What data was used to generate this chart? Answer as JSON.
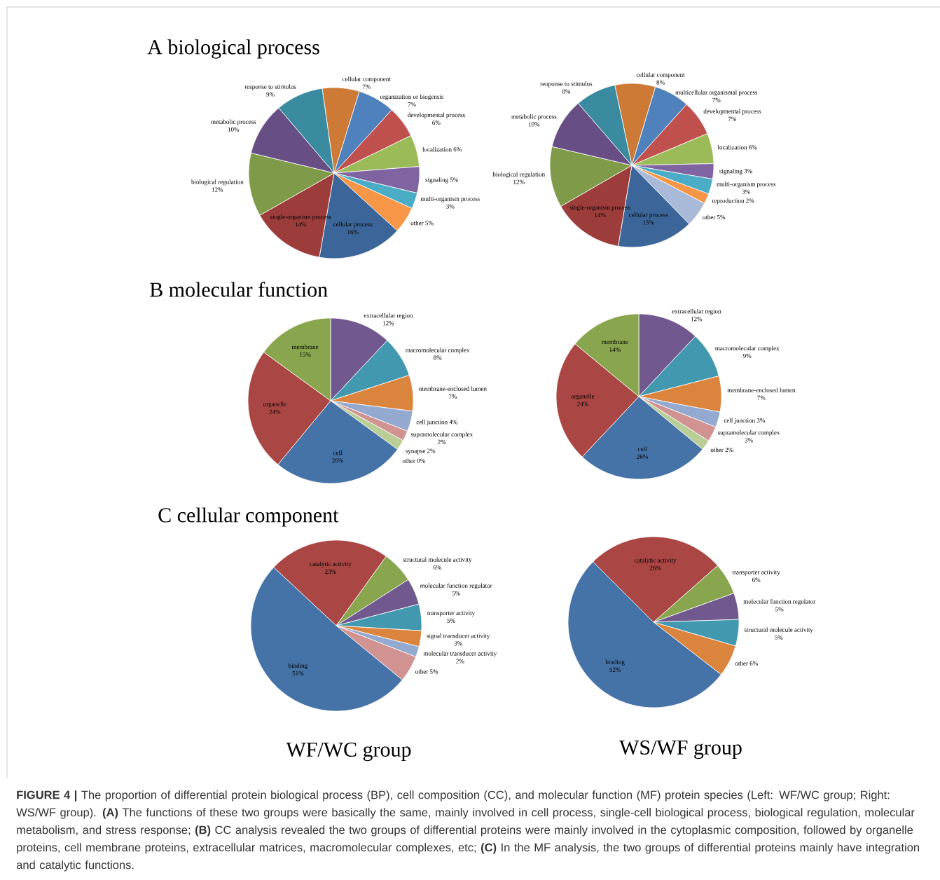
{
  "chart_data": [
    {
      "type": "pie",
      "title": "A   biological process",
      "categories": [
        "cellular component",
        "organization or biogensis",
        "developmental process",
        "localization",
        "signaling",
        "multi-organism process",
        "other",
        "cellular process",
        "single-organism process",
        "biological regulation",
        "metabolic process",
        "response to stimulus"
      ],
      "values": [
        7,
        7,
        6,
        6,
        5,
        3,
        5,
        16,
        14,
        12,
        10,
        9
      ],
      "value_labels": [
        "7%",
        "7%",
        "6%",
        "6%",
        "5%",
        "3%",
        "5%",
        "16%",
        "14%",
        "12%",
        "10%",
        "9%"
      ],
      "colors": [
        "#cc7a35",
        "#4f81bd",
        "#c0504d",
        "#9bbb59",
        "#8064a2",
        "#4bacc6",
        "#f79646",
        "#3c6699",
        "#9c3d3b",
        "#7f9a48",
        "#674f86",
        "#3b8ba0"
      ]
    },
    {
      "type": "pie",
      "categories": [
        "cellular component",
        "multicellular organismal process",
        "developmental process",
        "localization",
        "signaling",
        "multi-organism process",
        "reproduction",
        "other",
        "cellular process",
        "single-organism process",
        "biological regulation",
        "metabolic process",
        "reoponse to stimulus"
      ],
      "values": [
        8,
        7,
        7,
        6,
        3,
        3,
        2,
        5,
        15,
        14,
        12,
        10,
        8
      ],
      "value_labels": [
        "8%",
        "7%",
        "7%",
        "6%",
        "3%",
        "3%",
        "2%",
        "5%",
        "15%",
        "14%",
        "12%",
        "10%",
        "8%"
      ],
      "colors": [
        "#cc7a35",
        "#4f81bd",
        "#c0504d",
        "#9bbb59",
        "#8064a2",
        "#4bacc6",
        "#f79646",
        "#a9b9d8",
        "#3c6699",
        "#9c3d3b",
        "#7f9a48",
        "#674f86",
        "#3b8ba0"
      ]
    },
    {
      "type": "pie",
      "title": "B  molecular function",
      "categories": [
        "extracellular region",
        "macromolecular complex",
        "membrane-enclosed lumen",
        "cell junction",
        "supramolecular complex",
        "synapse",
        "other",
        "cell",
        "organelle",
        "membrane"
      ],
      "values": [
        12,
        8,
        7,
        4,
        2,
        2,
        0,
        26,
        24,
        15
      ],
      "value_labels": [
        "12%",
        "8%",
        "7%",
        "4%",
        "2%",
        "2%",
        "0%",
        "26%",
        "24%",
        "15%"
      ],
      "colors": [
        "#71588f",
        "#4198af",
        "#db843d",
        "#93a9cf",
        "#d19392",
        "#b9cd96",
        "#a99bbd",
        "#4572a7",
        "#aa4643",
        "#89a54e"
      ]
    },
    {
      "type": "pie",
      "categories": [
        "extracellular region",
        "macromolecular complex",
        "membrane-enclosed lumen",
        "cell junction",
        "supramolecular complex",
        "other",
        "cell",
        "organelle",
        "membrane"
      ],
      "values": [
        12,
        9,
        7,
        3,
        3,
        2,
        26,
        24,
        14
      ],
      "value_labels": [
        "12%",
        "9%",
        "7%",
        "3%",
        "3%",
        "2%",
        "26%",
        "24%",
        "14%"
      ],
      "colors": [
        "#71588f",
        "#4198af",
        "#db843d",
        "#93a9cf",
        "#d19392",
        "#b9cd96",
        "#4572a7",
        "#aa4643",
        "#89a54e"
      ]
    },
    {
      "type": "pie",
      "title": "C  cellular component",
      "categories": [
        "catalytic activity",
        "structural molecule activity",
        "molecular function regulator",
        "transporter activity",
        "signal transducer activity",
        "molecular transducer activity",
        "other",
        "binding"
      ],
      "values": [
        23,
        6,
        5,
        5,
        3,
        2,
        5,
        51
      ],
      "value_labels": [
        "23%",
        "6%",
        "5%",
        "5%",
        "3%",
        "2%",
        "5%",
        "51%"
      ],
      "colors": [
        "#aa4643",
        "#89a54e",
        "#71588f",
        "#4198af",
        "#db843d",
        "#93a9cf",
        "#d19392",
        "#4572a7"
      ],
      "annotations": [
        "WF/WC group"
      ]
    },
    {
      "type": "pie",
      "categories": [
        "catalytic activity",
        "transporter activity",
        "molecular function regulator",
        "structural molecule activity",
        "other",
        "binding"
      ],
      "values": [
        26,
        6,
        5,
        5,
        6,
        52
      ],
      "value_labels": [
        "26%",
        "6%",
        "5%",
        "5%",
        "6%",
        "52%"
      ],
      "colors": [
        "#aa4643",
        "#89a54e",
        "#71588f",
        "#4198af",
        "#db843d",
        "#4572a7"
      ],
      "annotations": [
        "WS/WF group",
        "**FIGURE 4 |** The proportion of differential protein biological process (BP), cell composition (CC), and molecular function (MF) protein species (Left: WF/WC group; Right: WS/WF group). **(A)** The functions of these two groups were basically the same, mainly involved in cell process, single-cell biological process, biological regulation, molecular metabolism, and stress response; **(B)** CC analysis revealed the two groups of differential proteins were mainly involved in the cytoplasmic composition, followed by organelle proteins, cell membrane proteins, extracellular matrices, macromolecular complexes, etc; **(C)** In the MF analysis, the two groups of differential proteins mainly have integration and catalytic functions."
      ]
    }
  ]
}
